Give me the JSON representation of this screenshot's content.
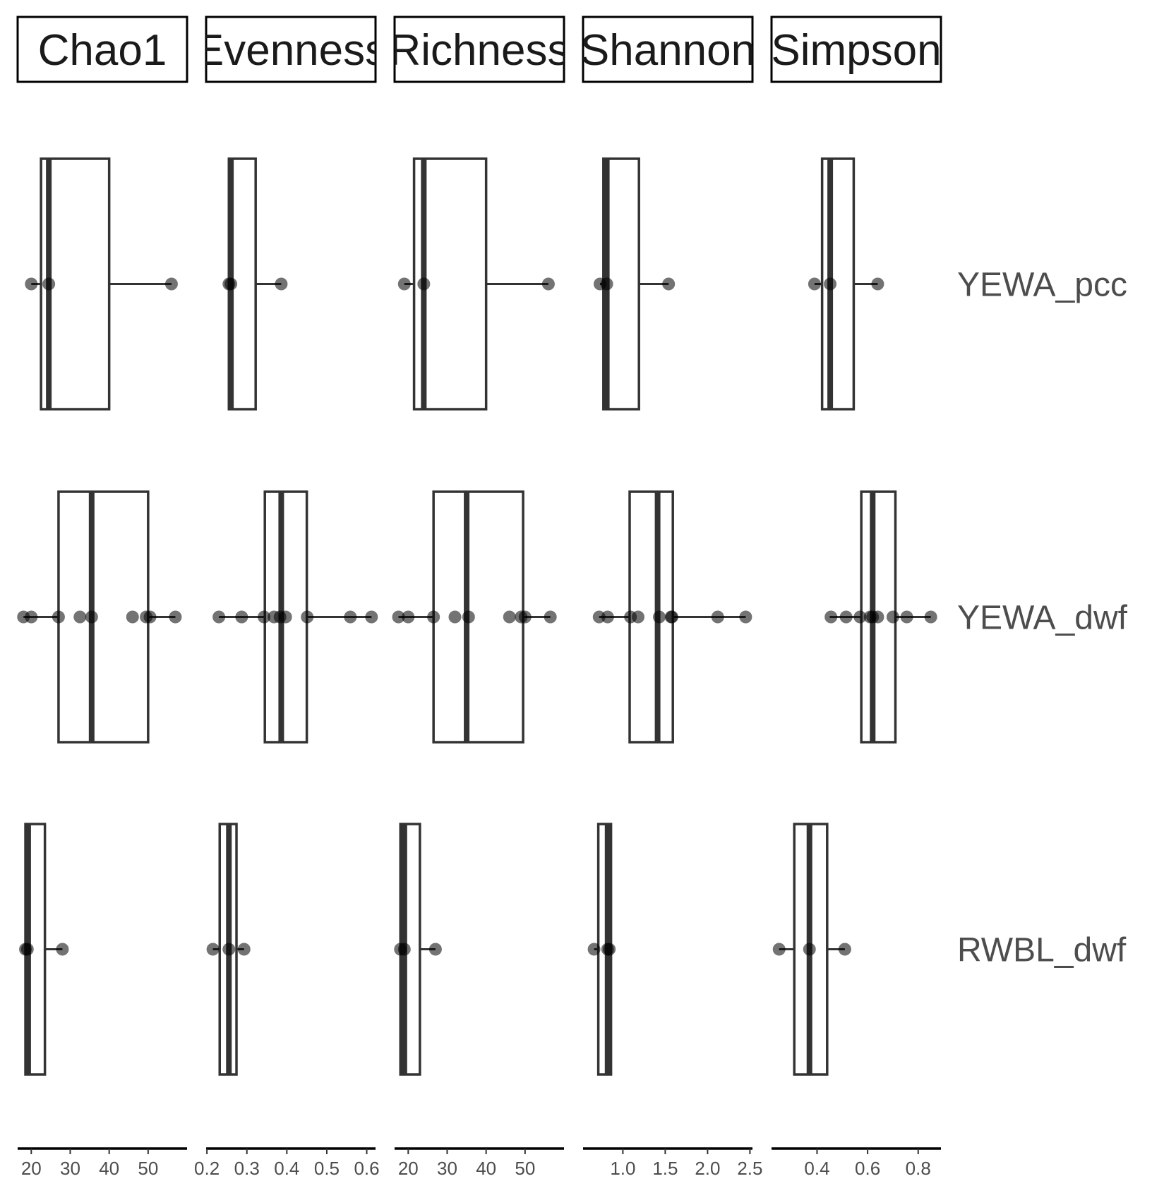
{
  "chart_data": {
    "type": "boxplot",
    "orientation": "horizontal",
    "facet_columns": [
      "Chao1",
      "Evenness",
      "Richness",
      "Shannon",
      "Simpson"
    ],
    "facet_rows": [
      "YEWA_pcc",
      "YEWA_dwf",
      "RWBL_dwf"
    ],
    "axes": [
      {
        "metric": "Chao1",
        "xlim": [
          16.5,
          60
        ],
        "ticks": [
          20,
          30,
          40,
          50
        ],
        "tick_labels": [
          "20",
          "30",
          "40",
          "50"
        ]
      },
      {
        "metric": "Evenness",
        "xlim": [
          0.198,
          0.622
        ],
        "ticks": [
          0.2,
          0.3,
          0.4,
          0.5,
          0.6
        ],
        "tick_labels": [
          "0.2",
          "0.3",
          "0.4",
          "0.5",
          "0.6"
        ]
      },
      {
        "metric": "Richness",
        "xlim": [
          16.5,
          60
        ],
        "ticks": [
          20,
          30,
          40,
          50
        ],
        "tick_labels": [
          "20",
          "30",
          "40",
          "50"
        ]
      },
      {
        "metric": "Shannon",
        "xlim": [
          0.53,
          2.53
        ],
        "ticks": [
          1.0,
          1.5,
          2.0,
          2.5
        ],
        "tick_labels": [
          "1.0",
          "1.5",
          "2.0",
          "2.5"
        ]
      },
      {
        "metric": "Simpson",
        "xlim": [
          0.22,
          0.89
        ],
        "ticks": [
          0.4,
          0.6,
          0.8
        ],
        "tick_labels": [
          "0.4",
          "0.6",
          "0.8"
        ]
      }
    ],
    "panels": [
      {
        "row": "YEWA_pcc",
        "metric": "Chao1",
        "q1": 22.5,
        "median": 24.5,
        "q3": 40,
        "whisker_low": 20,
        "whisker_high": 56,
        "points": [
          20,
          24.5,
          56
        ]
      },
      {
        "row": "YEWA_pcc",
        "metric": "Evenness",
        "q1": 0.255,
        "median": 0.26,
        "q3": 0.322,
        "whisker_low": 0.255,
        "whisker_high": 0.386,
        "points": [
          0.255,
          0.26,
          0.386
        ]
      },
      {
        "row": "YEWA_pcc",
        "metric": "Richness",
        "q1": 21.5,
        "median": 24,
        "q3": 40,
        "whisker_low": 19,
        "whisker_high": 56,
        "points": [
          19,
          24,
          56
        ]
      },
      {
        "row": "YEWA_pcc",
        "metric": "Shannon",
        "q1": 0.77,
        "median": 0.81,
        "q3": 1.19,
        "whisker_low": 0.73,
        "whisker_high": 1.54,
        "points": [
          0.73,
          0.81,
          1.54
        ]
      },
      {
        "row": "YEWA_pcc",
        "metric": "Simpson",
        "q1": 0.42,
        "median": 0.452,
        "q3": 0.545,
        "whisker_low": 0.39,
        "whisker_high": 0.64,
        "points": [
          0.39,
          0.452,
          0.64
        ]
      },
      {
        "row": "YEWA_dwf",
        "metric": "Chao1",
        "q1": 27,
        "median": 35.5,
        "q3": 50,
        "whisker_low": 18,
        "whisker_high": 57,
        "points": [
          18,
          20,
          27,
          32.5,
          35.5,
          46,
          49.5,
          50.5,
          57
        ]
      },
      {
        "row": "YEWA_dwf",
        "metric": "Evenness",
        "q1": 0.345,
        "median": 0.386,
        "q3": 0.45,
        "whisker_low": 0.23,
        "whisker_high": 0.612,
        "points": [
          0.23,
          0.287,
          0.343,
          0.368,
          0.383,
          0.397,
          0.451,
          0.559,
          0.612
        ]
      },
      {
        "row": "YEWA_dwf",
        "metric": "Richness",
        "q1": 26.5,
        "median": 35,
        "q3": 49.5,
        "whisker_low": 17.5,
        "whisker_high": 56.5,
        "points": [
          17.5,
          20,
          26.5,
          32,
          35.5,
          46,
          49,
          50,
          56.5
        ]
      },
      {
        "row": "YEWA_dwf",
        "metric": "Shannon",
        "q1": 1.08,
        "median": 1.41,
        "q3": 1.59,
        "whisker_low": 0.72,
        "whisker_high": 2.45,
        "points": [
          0.72,
          0.82,
          1.09,
          1.18,
          1.43,
          1.57,
          1.58,
          2.12,
          2.45
        ]
      },
      {
        "row": "YEWA_dwf",
        "metric": "Simpson",
        "q1": 0.575,
        "median": 0.62,
        "q3": 0.71,
        "whisker_low": 0.45,
        "whisker_high": 0.85,
        "points": [
          0.455,
          0.515,
          0.57,
          0.61,
          0.62,
          0.64,
          0.7,
          0.755,
          0.85
        ]
      },
      {
        "row": "RWBL_dwf",
        "metric": "Chao1",
        "q1": 18.5,
        "median": 19.2,
        "q3": 23.5,
        "whisker_low": 18.5,
        "whisker_high": 28,
        "points": [
          18.5,
          19,
          28
        ]
      },
      {
        "row": "RWBL_dwf",
        "metric": "Evenness",
        "q1": 0.232,
        "median": 0.255,
        "q3": 0.274,
        "whisker_low": 0.215,
        "whisker_high": 0.293,
        "points": [
          0.215,
          0.255,
          0.293
        ]
      },
      {
        "row": "RWBL_dwf",
        "metric": "Richness",
        "q1": 18,
        "median": 19,
        "q3": 23,
        "whisker_low": 18,
        "whisker_high": 27,
        "points": [
          18,
          19,
          27
        ]
      },
      {
        "row": "RWBL_dwf",
        "metric": "Shannon",
        "q1": 0.71,
        "median": 0.82,
        "q3": 0.86,
        "whisker_low": 0.66,
        "whisker_high": 0.86,
        "points": [
          0.66,
          0.82,
          0.84
        ]
      },
      {
        "row": "RWBL_dwf",
        "metric": "Simpson",
        "q1": 0.31,
        "median": 0.37,
        "q3": 0.44,
        "whisker_low": 0.25,
        "whisker_high": 0.51,
        "points": [
          0.25,
          0.37,
          0.51
        ]
      }
    ],
    "title": "",
    "xlabel": "",
    "ylabel": "",
    "grid": false,
    "legend": "none"
  }
}
